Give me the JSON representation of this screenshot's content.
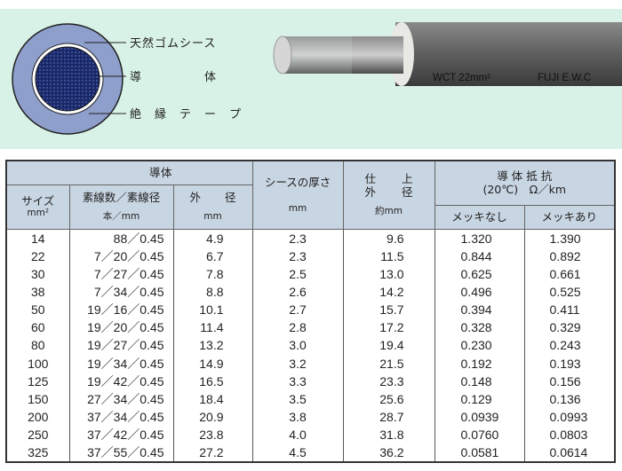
{
  "diagram": {
    "labels": [
      "天然ゴムシース",
      "導　　　　　体",
      "絶　縁　テ　ー　プ"
    ],
    "cable_print": [
      "WCT  22mm²",
      "FUJI E.W.C"
    ],
    "colors": {
      "background": "#d9f2e7",
      "sheath": "#8e9fcc",
      "conductor": "#1e2c6e",
      "tape": "#ffffff"
    }
  },
  "table": {
    "header": {
      "conductor": [
        "導",
        "体"
      ],
      "size": "サイズ",
      "size_unit": "mm²",
      "strands": "素線数／素線径",
      "strands_unit": "本／mm",
      "od": [
        "外",
        "径"
      ],
      "od_unit": "mm",
      "sheath": "シースの厚さ",
      "sheath_unit": "mm",
      "finish": [
        "仕",
        "上"
      ],
      "finish2": [
        "外",
        "径"
      ],
      "finish_unit": "約mm",
      "resistance": "導 体 抵 抗",
      "resistance_cond": "(20℃)　Ω／km",
      "plain": "メッキなし",
      "plated": "メッキあり"
    },
    "rows": [
      [
        "14",
        "88／0.45",
        "4.9",
        "2.3",
        "9.6",
        "1.320",
        "1.390"
      ],
      [
        "22",
        "7／20／0.45",
        "6.7",
        "2.3",
        "11.5",
        "0.844",
        "0.892"
      ],
      [
        "30",
        "7／27／0.45",
        "7.8",
        "2.5",
        "13.0",
        "0.625",
        "0.661"
      ],
      [
        "38",
        "7／34／0.45",
        "8.8",
        "2.6",
        "14.2",
        "0.496",
        "0.525"
      ],
      [
        "50",
        "19／16／0.45",
        "10.1",
        "2.7",
        "15.7",
        "0.394",
        "0.411"
      ],
      [
        "60",
        "19／20／0.45",
        "11.4",
        "2.8",
        "17.2",
        "0.328",
        "0.329"
      ],
      [
        "80",
        "19／27／0.45",
        "13.2",
        "3.0",
        "19.4",
        "0.230",
        "0.243"
      ],
      [
        "100",
        "19／34／0.45",
        "14.9",
        "3.2",
        "21.5",
        "0.192",
        "0.193"
      ],
      [
        "125",
        "19／42／0.45",
        "16.5",
        "3.3",
        "23.3",
        "0.148",
        "0.156"
      ],
      [
        "150",
        "27／34／0.45",
        "18.4",
        "3.5",
        "25.6",
        "0.129",
        "0.136"
      ],
      [
        "200",
        "37／34／0.45",
        "20.9",
        "3.8",
        "28.7",
        "0.0939",
        "0.0993"
      ],
      [
        "250",
        "37／42／0.45",
        "23.8",
        "4.0",
        "31.8",
        "0.0760",
        "0.0803"
      ],
      [
        "325",
        "37／55／0.45",
        "27.2",
        "4.5",
        "36.2",
        "0.0581",
        "0.0614"
      ]
    ]
  }
}
